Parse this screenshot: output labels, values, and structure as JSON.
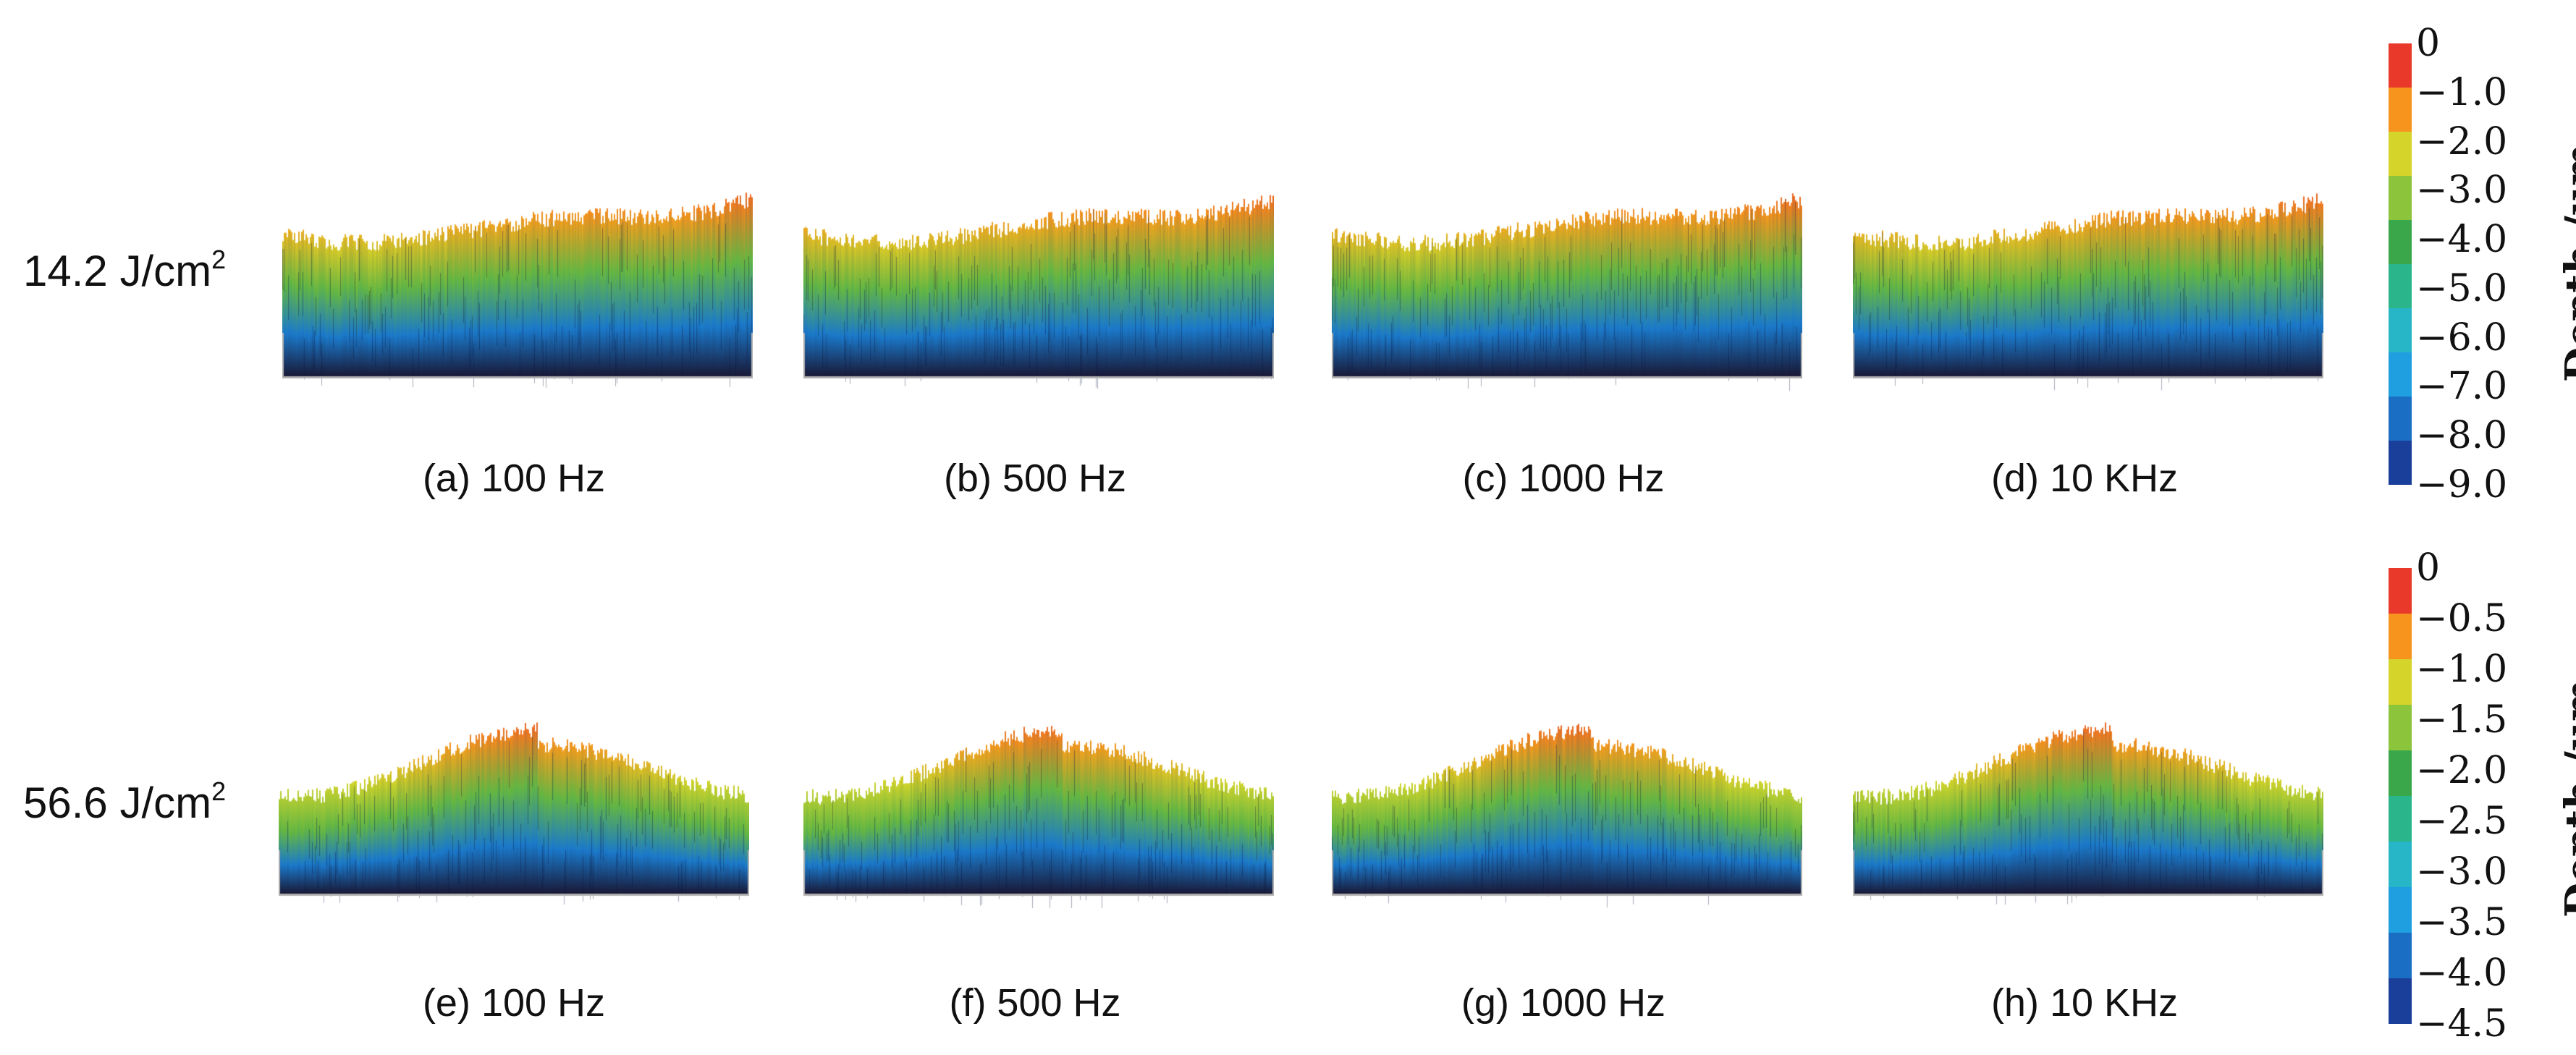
{
  "rows": [
    {
      "label": "14.2 J/cm",
      "label_sup": "2",
      "shape": "rise",
      "panels": [
        {
          "caption": "(a) 100 Hz"
        },
        {
          "caption": "(b) 500 Hz"
        },
        {
          "caption": "(c) 1000 Hz"
        },
        {
          "caption": "(d) 10 KHz"
        }
      ],
      "colorbar": {
        "title": "Depth /μm",
        "ticks": [
          "0",
          "−1.0",
          "−2.0",
          "−3.0",
          "−4.0",
          "−5.0",
          "−6.0",
          "−7.0",
          "−8.0",
          "−9.0"
        ]
      }
    },
    {
      "label": "56.6 J/cm",
      "label_sup": "2",
      "shape": "valley",
      "panels": [
        {
          "caption": "(e) 100 Hz"
        },
        {
          "caption": "(f) 500 Hz"
        },
        {
          "caption": "(g) 1000 Hz"
        },
        {
          "caption": "(h) 10 KHz"
        }
      ],
      "colorbar": {
        "title": "Depth /μm",
        "ticks": [
          "0",
          "−0.5",
          "−1.0",
          "−1.5",
          "−2.0",
          "−2.5",
          "−3.0",
          "−3.5",
          "−4.0",
          "−4.5"
        ]
      }
    }
  ],
  "colormap": [
    "#e8392a",
    "#f7941d",
    "#d4d42a",
    "#8cc43c",
    "#3aa84a",
    "#2bb58a",
    "#27b5c8",
    "#1f9fe0",
    "#1a6fc4",
    "#1a3f9a"
  ]
}
